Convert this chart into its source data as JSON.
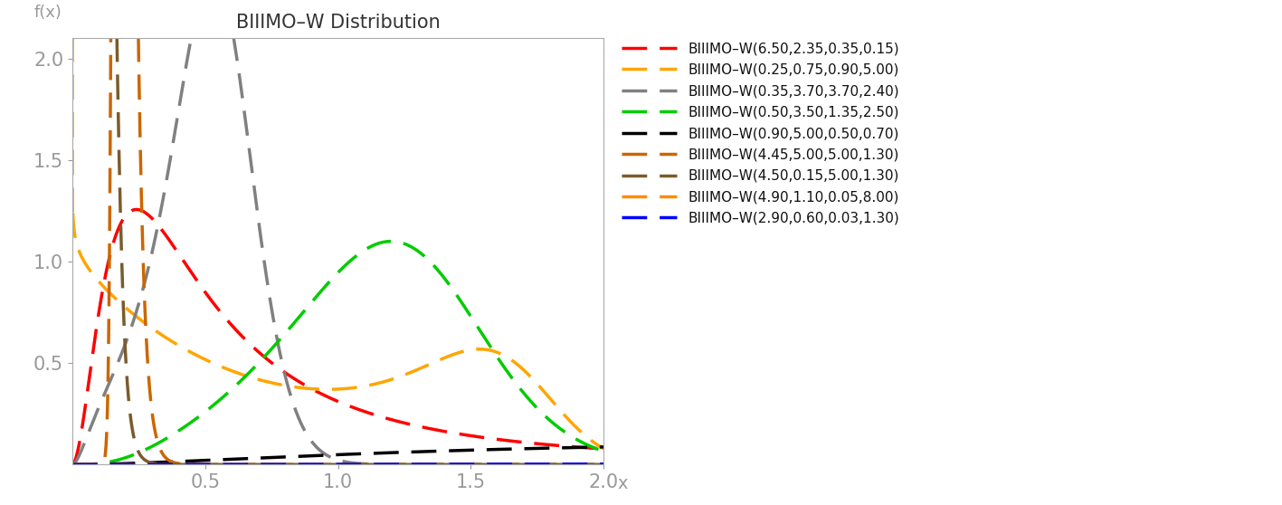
{
  "title": "BIIIMO–W Distribution",
  "xlabel": "x",
  "ylabel": "f(x)",
  "xlim": [
    0,
    2.0
  ],
  "ylim": [
    0,
    2.1
  ],
  "xticks": [
    0.5,
    1.0,
    1.5,
    2.0
  ],
  "yticks": [
    0.5,
    1.0,
    1.5,
    2.0
  ],
  "series": [
    {
      "label": "BIIIMO–W(6.50,2.35,0.35,0.15)",
      "color": "#ff0000",
      "params": [
        6.5,
        2.35,
        0.35,
        0.15
      ]
    },
    {
      "label": "BIIIMO–W(0.25,0.75,0.90,5.00)",
      "color": "#ffa500",
      "params": [
        0.25,
        0.75,
        0.9,
        5.0
      ]
    },
    {
      "label": "BIIIMO–W(0.35,3.70,3.70,2.40)",
      "color": "#808080",
      "params": [
        0.35,
        3.7,
        3.7,
        2.4
      ]
    },
    {
      "label": "BIIIMO–W(0.50,3.50,1.35,2.50)",
      "color": "#00cc00",
      "params": [
        0.5,
        3.5,
        1.35,
        2.5
      ]
    },
    {
      "label": "BIIIMO–W(0.90,5.00,0.50,0.70)",
      "color": "#000000",
      "params": [
        0.9,
        5.0,
        0.5,
        0.7
      ]
    },
    {
      "label": "BIIIMO–W(4.45,5.00,5.00,1.30)",
      "color": "#cc6600",
      "params": [
        4.45,
        5.0,
        5.0,
        1.3
      ]
    },
    {
      "label": "BIIIMO–W(4.50,0.15,5.00,1.30)",
      "color": "#7B5B2B",
      "params": [
        4.5,
        0.15,
        5.0,
        1.3
      ]
    },
    {
      "label": "BIIIMO–W(4.90,1.10,0.05,8.00)",
      "color": "#ff8c00",
      "params": [
        4.9,
        1.1,
        0.05,
        8.0
      ]
    },
    {
      "label": "BIIIMO–W(2.90,0.60,0.03,1.30)",
      "color": "#0000ff",
      "params": [
        2.9,
        0.6,
        0.03,
        1.3
      ]
    }
  ],
  "dash_pattern": [
    8,
    4
  ],
  "linewidth": 2.5,
  "background_color": "#ffffff",
  "figsize": [
    14.17,
    5.58
  ],
  "dpi": 100
}
